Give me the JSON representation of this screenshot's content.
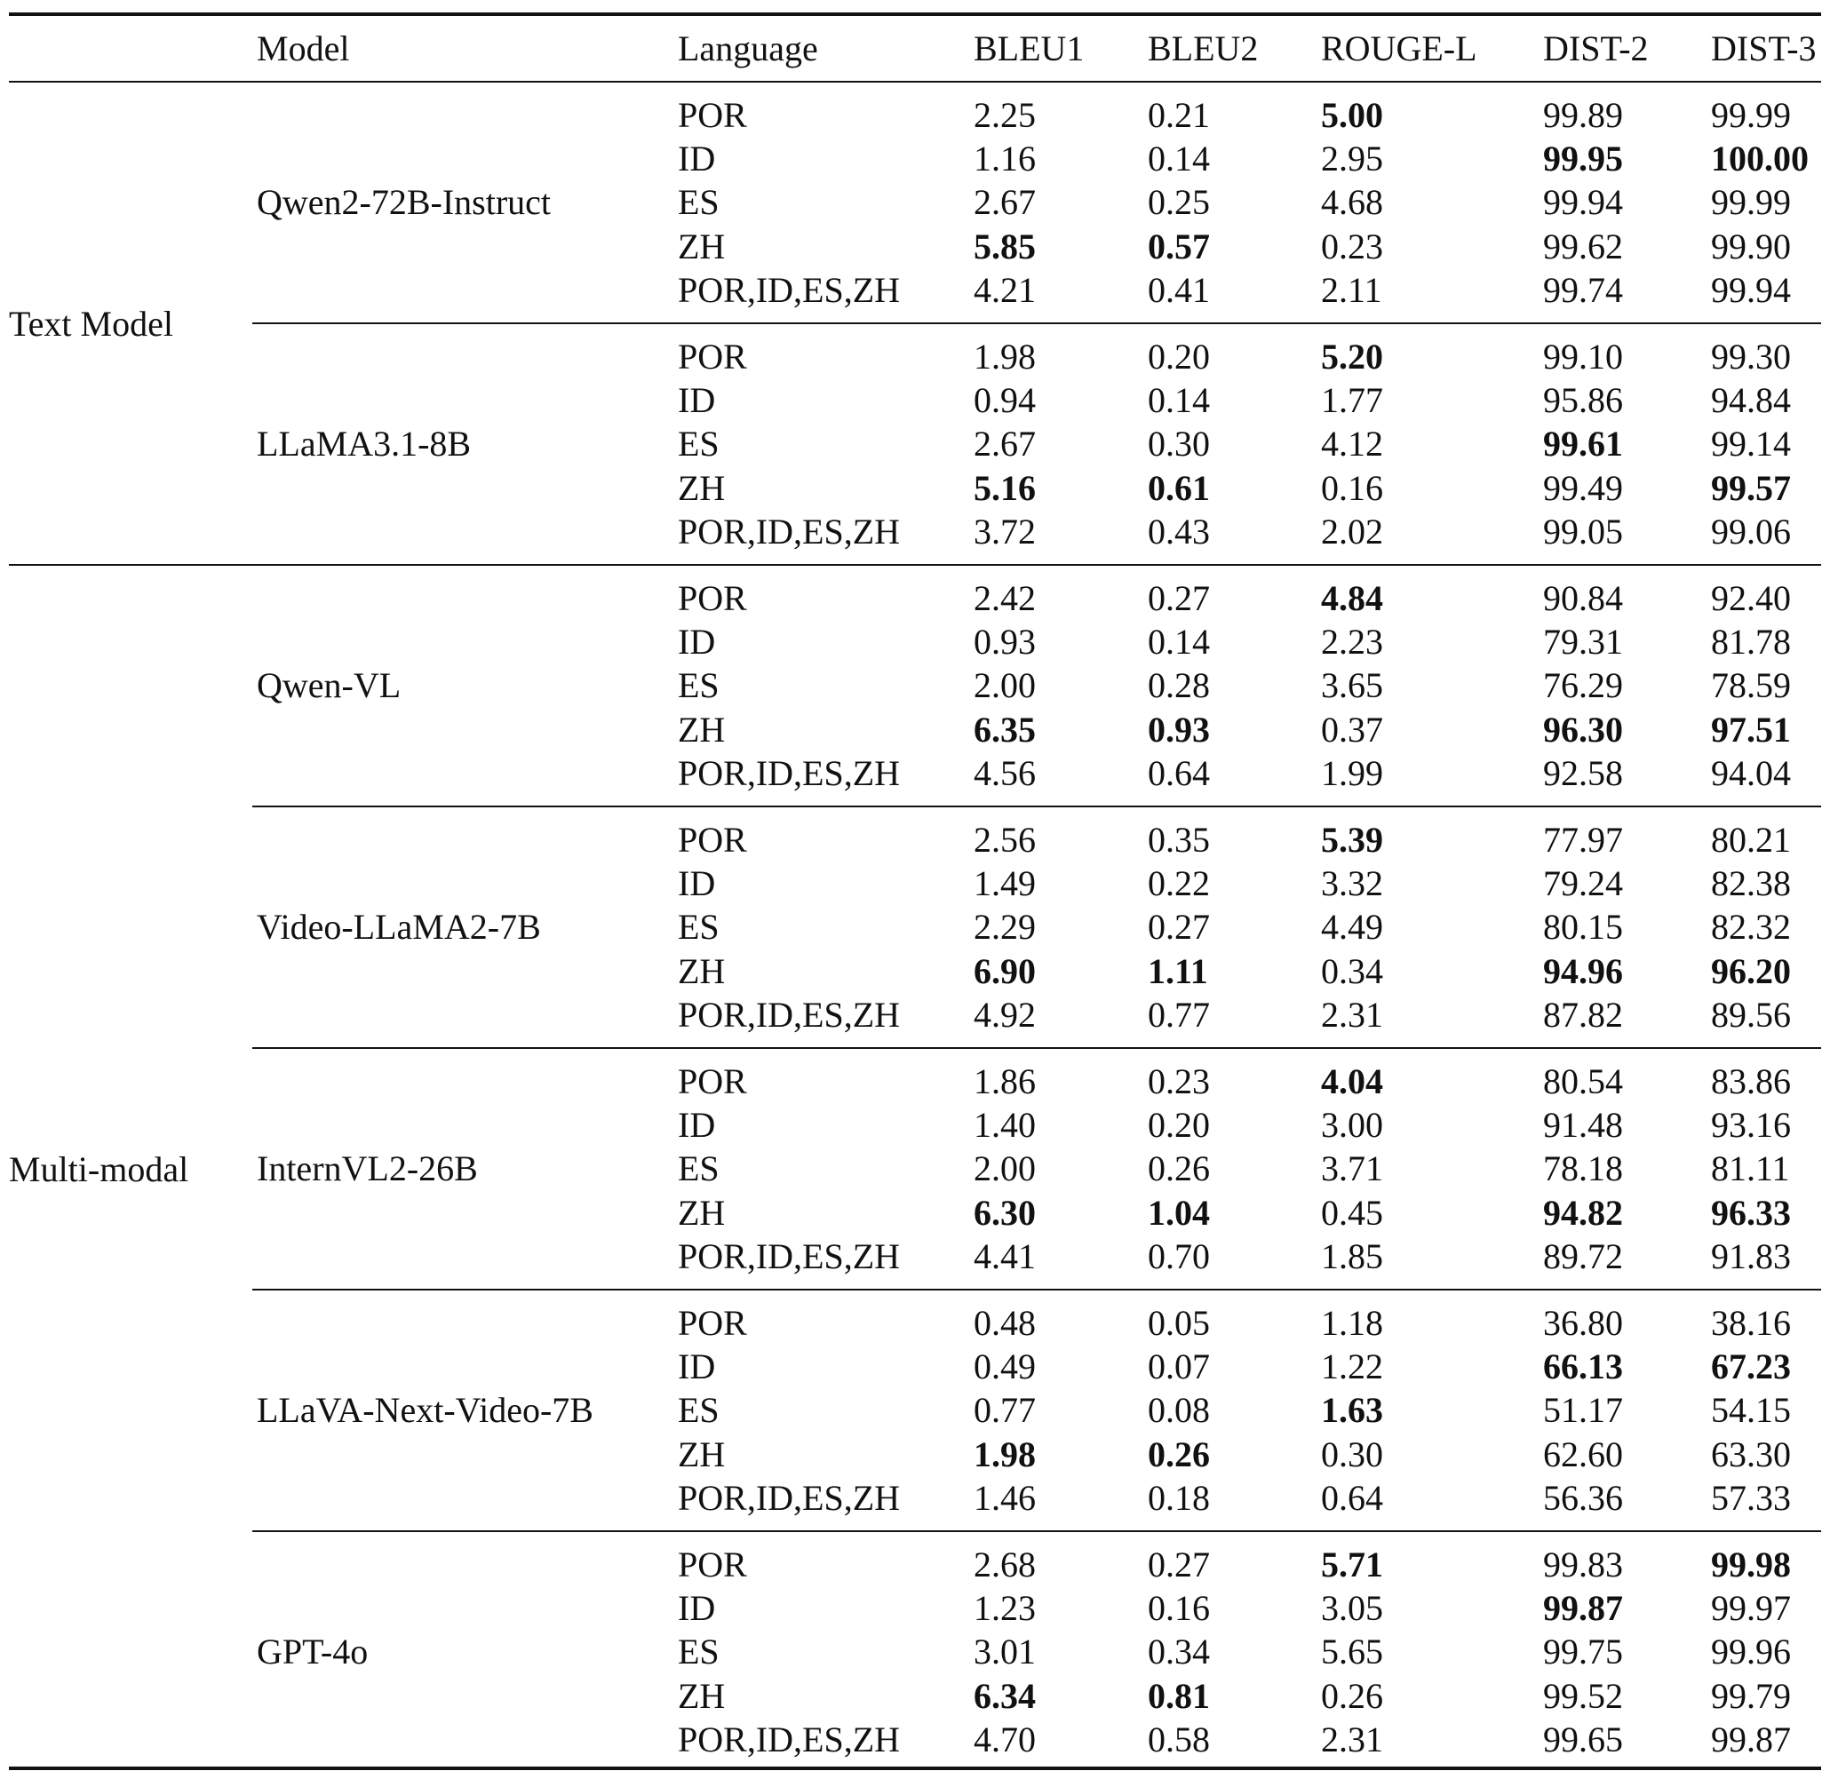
{
  "columns": [
    "Model",
    "Language",
    "BLEU1",
    "BLEU2",
    "ROUGE-L",
    "DIST-2",
    "DIST-3"
  ],
  "groups": [
    {
      "category": "Text Model",
      "models": [
        {
          "name": "Qwen2-72B-Instruct",
          "rows": [
            {
              "lang": "POR",
              "v": [
                "2.25",
                "0.21",
                "5.00",
                "99.89",
                "99.99"
              ],
              "bold": [
                false,
                false,
                true,
                false,
                false
              ]
            },
            {
              "lang": "ID",
              "v": [
                "1.16",
                "0.14",
                "2.95",
                "99.95",
                "100.00"
              ],
              "bold": [
                false,
                false,
                false,
                true,
                true
              ]
            },
            {
              "lang": "ES",
              "v": [
                "2.67",
                "0.25",
                "4.68",
                "99.94",
                "99.99"
              ],
              "bold": [
                false,
                false,
                false,
                false,
                false
              ]
            },
            {
              "lang": "ZH",
              "v": [
                "5.85",
                "0.57",
                "0.23",
                "99.62",
                "99.90"
              ],
              "bold": [
                true,
                true,
                false,
                false,
                false
              ]
            },
            {
              "lang": "POR,ID,ES,ZH",
              "v": [
                "4.21",
                "0.41",
                "2.11",
                "99.74",
                "99.94"
              ],
              "bold": [
                false,
                false,
                false,
                false,
                false
              ]
            }
          ]
        },
        {
          "name": "LLaMA3.1-8B",
          "rows": [
            {
              "lang": "POR",
              "v": [
                "1.98",
                "0.20",
                "5.20",
                "99.10",
                "99.30"
              ],
              "bold": [
                false,
                false,
                true,
                false,
                false
              ]
            },
            {
              "lang": "ID",
              "v": [
                "0.94",
                "0.14",
                "1.77",
                "95.86",
                "94.84"
              ],
              "bold": [
                false,
                false,
                false,
                false,
                false
              ]
            },
            {
              "lang": "ES",
              "v": [
                "2.67",
                "0.30",
                "4.12",
                "99.61",
                "99.14"
              ],
              "bold": [
                false,
                false,
                false,
                true,
                false
              ]
            },
            {
              "lang": "ZH",
              "v": [
                "5.16",
                "0.61",
                "0.16",
                "99.49",
                "99.57"
              ],
              "bold": [
                true,
                true,
                false,
                false,
                true
              ]
            },
            {
              "lang": "POR,ID,ES,ZH",
              "v": [
                "3.72",
                "0.43",
                "2.02",
                "99.05",
                "99.06"
              ],
              "bold": [
                false,
                false,
                false,
                false,
                false
              ]
            }
          ]
        }
      ]
    },
    {
      "category": "Multi-modal",
      "models": [
        {
          "name": "Qwen-VL",
          "rows": [
            {
              "lang": "POR",
              "v": [
                "2.42",
                "0.27",
                "4.84",
                "90.84",
                "92.40"
              ],
              "bold": [
                false,
                false,
                true,
                false,
                false
              ]
            },
            {
              "lang": "ID",
              "v": [
                "0.93",
                "0.14",
                "2.23",
                "79.31",
                "81.78"
              ],
              "bold": [
                false,
                false,
                false,
                false,
                false
              ]
            },
            {
              "lang": "ES",
              "v": [
                "2.00",
                "0.28",
                "3.65",
                "76.29",
                "78.59"
              ],
              "bold": [
                false,
                false,
                false,
                false,
                false
              ]
            },
            {
              "lang": "ZH",
              "v": [
                "6.35",
                "0.93",
                "0.37",
                "96.30",
                "97.51"
              ],
              "bold": [
                true,
                true,
                false,
                true,
                true
              ]
            },
            {
              "lang": "POR,ID,ES,ZH",
              "v": [
                "4.56",
                "0.64",
                "1.99",
                "92.58",
                "94.04"
              ],
              "bold": [
                false,
                false,
                false,
                false,
                false
              ]
            }
          ]
        },
        {
          "name": "Video-LLaMA2-7B",
          "rows": [
            {
              "lang": "POR",
              "v": [
                "2.56",
                "0.35",
                "5.39",
                "77.97",
                "80.21"
              ],
              "bold": [
                false,
                false,
                true,
                false,
                false
              ]
            },
            {
              "lang": "ID",
              "v": [
                "1.49",
                "0.22",
                "3.32",
                "79.24",
                "82.38"
              ],
              "bold": [
                false,
                false,
                false,
                false,
                false
              ]
            },
            {
              "lang": "ES",
              "v": [
                "2.29",
                "0.27",
                "4.49",
                "80.15",
                "82.32"
              ],
              "bold": [
                false,
                false,
                false,
                false,
                false
              ]
            },
            {
              "lang": "ZH",
              "v": [
                "6.90",
                "1.11",
                "0.34",
                "94.96",
                "96.20"
              ],
              "bold": [
                true,
                true,
                false,
                true,
                true
              ]
            },
            {
              "lang": "POR,ID,ES,ZH",
              "v": [
                "4.92",
                "0.77",
                "2.31",
                "87.82",
                "89.56"
              ],
              "bold": [
                false,
                false,
                false,
                false,
                false
              ]
            }
          ]
        },
        {
          "name": "InternVL2-26B",
          "rows": [
            {
              "lang": "POR",
              "v": [
                "1.86",
                "0.23",
                "4.04",
                "80.54",
                "83.86"
              ],
              "bold": [
                false,
                false,
                true,
                false,
                false
              ]
            },
            {
              "lang": "ID",
              "v": [
                "1.40",
                "0.20",
                "3.00",
                "91.48",
                "93.16"
              ],
              "bold": [
                false,
                false,
                false,
                false,
                false
              ]
            },
            {
              "lang": "ES",
              "v": [
                "2.00",
                "0.26",
                "3.71",
                "78.18",
                "81.11"
              ],
              "bold": [
                false,
                false,
                false,
                false,
                false
              ]
            },
            {
              "lang": "ZH",
              "v": [
                "6.30",
                "1.04",
                "0.45",
                "94.82",
                "96.33"
              ],
              "bold": [
                true,
                true,
                false,
                true,
                true
              ]
            },
            {
              "lang": "POR,ID,ES,ZH",
              "v": [
                "4.41",
                "0.70",
                "1.85",
                "89.72",
                "91.83"
              ],
              "bold": [
                false,
                false,
                false,
                false,
                false
              ]
            }
          ]
        },
        {
          "name": "LLaVA-Next-Video-7B",
          "rows": [
            {
              "lang": "POR",
              "v": [
                "0.48",
                "0.05",
                "1.18",
                "36.80",
                "38.16"
              ],
              "bold": [
                false,
                false,
                false,
                false,
                false
              ]
            },
            {
              "lang": "ID",
              "v": [
                "0.49",
                "0.07",
                "1.22",
                "66.13",
                "67.23"
              ],
              "bold": [
                false,
                false,
                false,
                true,
                true
              ]
            },
            {
              "lang": "ES",
              "v": [
                "0.77",
                "0.08",
                "1.63",
                "51.17",
                "54.15"
              ],
              "bold": [
                false,
                false,
                true,
                false,
                false
              ]
            },
            {
              "lang": "ZH",
              "v": [
                "1.98",
                "0.26",
                "0.30",
                "62.60",
                "63.30"
              ],
              "bold": [
                true,
                true,
                false,
                false,
                false
              ]
            },
            {
              "lang": "POR,ID,ES,ZH",
              "v": [
                "1.46",
                "0.18",
                "0.64",
                "56.36",
                "57.33"
              ],
              "bold": [
                false,
                false,
                false,
                false,
                false
              ]
            }
          ]
        },
        {
          "name": "GPT-4o",
          "rows": [
            {
              "lang": "POR",
              "v": [
                "2.68",
                "0.27",
                "5.71",
                "99.83",
                "99.98"
              ],
              "bold": [
                false,
                false,
                true,
                false,
                true
              ]
            },
            {
              "lang": "ID",
              "v": [
                "1.23",
                "0.16",
                "3.05",
                "99.87",
                "99.97"
              ],
              "bold": [
                false,
                false,
                false,
                true,
                false
              ]
            },
            {
              "lang": "ES",
              "v": [
                "3.01",
                "0.34",
                "5.65",
                "99.75",
                "99.96"
              ],
              "bold": [
                false,
                false,
                false,
                false,
                false
              ]
            },
            {
              "lang": "ZH",
              "v": [
                "6.34",
                "0.81",
                "0.26",
                "99.52",
                "99.79"
              ],
              "bold": [
                true,
                true,
                false,
                false,
                false
              ]
            },
            {
              "lang": "POR,ID,ES,ZH",
              "v": [
                "4.70",
                "0.58",
                "2.31",
                "99.65",
                "99.87"
              ],
              "bold": [
                false,
                false,
                false,
                false,
                false
              ]
            }
          ]
        }
      ]
    }
  ]
}
